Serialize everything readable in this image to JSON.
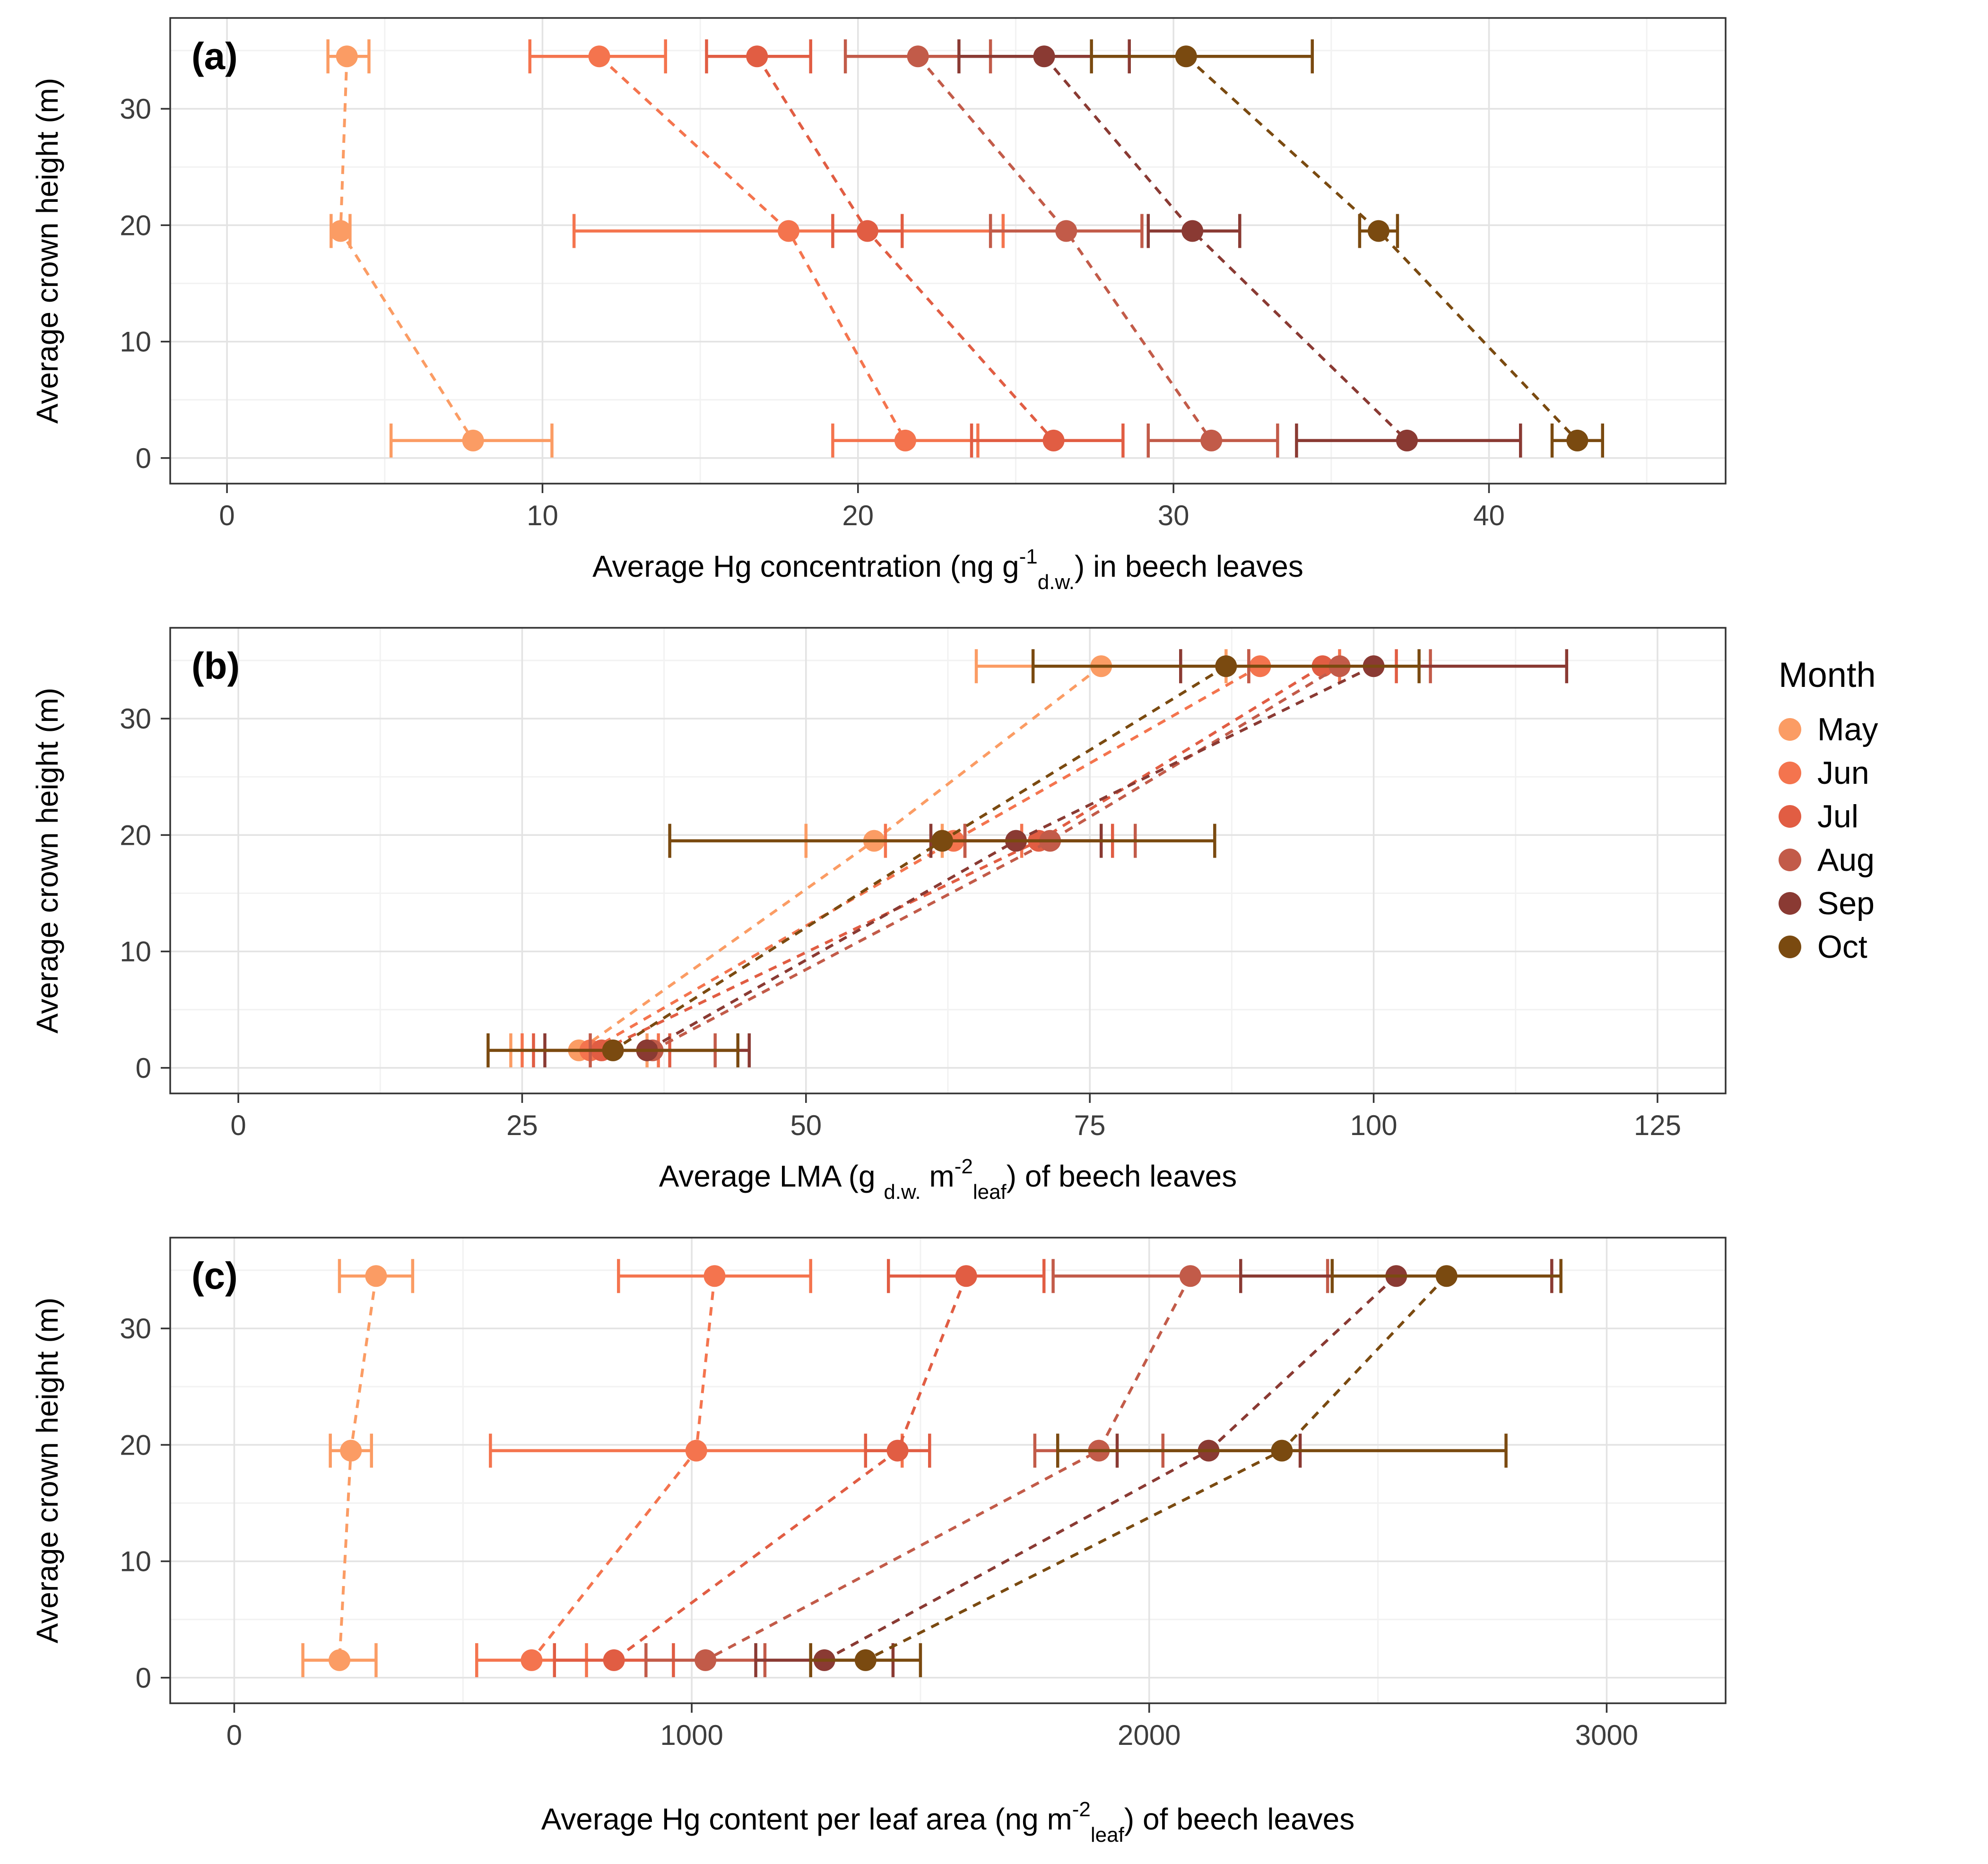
{
  "figure": {
    "y_axis_label": "Average crown height  (m)",
    "y_ticks": [
      0,
      10,
      20,
      30
    ],
    "ylim": [
      -2.2,
      37.8
    ],
    "background": "#ffffff",
    "grid_major_color": "#e3e3e3",
    "grid_minor_color": "#f2f2f2",
    "border_color": "#333333"
  },
  "legend": {
    "title": "Month",
    "items": [
      {
        "label": "May",
        "color": "#FB9C64"
      },
      {
        "label": "Jun",
        "color": "#F4744E"
      },
      {
        "label": "Jul",
        "color": "#E15D43"
      },
      {
        "label": "Aug",
        "color": "#C25B49"
      },
      {
        "label": "Sep",
        "color": "#8A3A33"
      },
      {
        "label": "Oct",
        "color": "#7A4A10"
      }
    ]
  },
  "chart_data": [
    {
      "type": "scatter",
      "label": "(a)",
      "xlabel_parts": [
        {
          "t": "Average Hg concentration (ng g",
          "s": "n"
        },
        {
          "t": "-1",
          "s": "sup"
        },
        {
          "t": "d.w.",
          "s": "sub"
        },
        {
          "t": ") in beech leaves",
          "s": "n"
        }
      ],
      "xlim": [
        -1.8,
        47.5
      ],
      "xticks": [
        0,
        10,
        20,
        30,
        40
      ],
      "series": [
        {
          "name": "May",
          "color": "#FB9C64",
          "points": [
            {
              "h": 34.5,
              "x": 3.8,
              "lo": 3.2,
              "hi": 4.5
            },
            {
              "h": 19.5,
              "x": 3.6,
              "lo": 3.3,
              "hi": 3.9
            },
            {
              "h": 1.5,
              "x": 7.8,
              "lo": 5.2,
              "hi": 10.3
            }
          ]
        },
        {
          "name": "Jun",
          "color": "#F4744E",
          "points": [
            {
              "h": 34.5,
              "x": 11.8,
              "lo": 9.6,
              "hi": 13.9
            },
            {
              "h": 19.5,
              "x": 17.8,
              "lo": 11.0,
              "hi": 24.6
            },
            {
              "h": 1.5,
              "x": 21.5,
              "lo": 19.2,
              "hi": 23.8
            }
          ]
        },
        {
          "name": "Jul",
          "color": "#E15D43",
          "points": [
            {
              "h": 34.5,
              "x": 16.8,
              "lo": 15.2,
              "hi": 18.5
            },
            {
              "h": 19.5,
              "x": 20.3,
              "lo": 19.2,
              "hi": 21.4
            },
            {
              "h": 1.5,
              "x": 26.2,
              "lo": 23.6,
              "hi": 28.4
            }
          ]
        },
        {
          "name": "Aug",
          "color": "#C25B49",
          "points": [
            {
              "h": 34.5,
              "x": 21.9,
              "lo": 19.6,
              "hi": 24.2
            },
            {
              "h": 19.5,
              "x": 26.6,
              "lo": 24.2,
              "hi": 29.0
            },
            {
              "h": 1.5,
              "x": 31.2,
              "lo": 29.2,
              "hi": 33.3
            }
          ]
        },
        {
          "name": "Sep",
          "color": "#8A3A33",
          "points": [
            {
              "h": 34.5,
              "x": 25.9,
              "lo": 23.2,
              "hi": 28.6
            },
            {
              "h": 19.5,
              "x": 30.6,
              "lo": 29.2,
              "hi": 32.1
            },
            {
              "h": 1.5,
              "x": 37.4,
              "lo": 33.9,
              "hi": 41.0
            }
          ]
        },
        {
          "name": "Oct",
          "color": "#7A4A10",
          "points": [
            {
              "h": 34.5,
              "x": 30.4,
              "lo": 27.4,
              "hi": 34.4
            },
            {
              "h": 19.5,
              "x": 36.5,
              "lo": 35.9,
              "hi": 37.1
            },
            {
              "h": 1.5,
              "x": 42.8,
              "lo": 42.0,
              "hi": 43.6
            }
          ]
        }
      ]
    },
    {
      "type": "scatter",
      "label": "(b)",
      "xlabel_parts": [
        {
          "t": "Average LMA (g ",
          "s": "n"
        },
        {
          "t": "d.w.",
          "s": "sub"
        },
        {
          "t": " m",
          "s": "n"
        },
        {
          "t": "-2",
          "s": "sup"
        },
        {
          "t": "leaf",
          "s": "sub"
        },
        {
          "t": ") of beech leaves",
          "s": "n"
        }
      ],
      "xlim": [
        -6,
        131
      ],
      "xticks": [
        0,
        25,
        50,
        75,
        100,
        125
      ],
      "series": [
        {
          "name": "May",
          "color": "#FB9C64",
          "points": [
            {
              "h": 34.5,
              "x": 76,
              "lo": 65,
              "hi": 87
            },
            {
              "h": 19.5,
              "x": 56,
              "lo": 50,
              "hi": 62
            },
            {
              "h": 1.5,
              "x": 30,
              "lo": 24,
              "hi": 36
            }
          ]
        },
        {
          "name": "Jun",
          "color": "#F4744E",
          "points": [
            {
              "h": 34.5,
              "x": 90,
              "lo": 83,
              "hi": 97
            },
            {
              "h": 19.5,
              "x": 63,
              "lo": 57,
              "hi": 69
            },
            {
              "h": 1.5,
              "x": 31,
              "lo": 25,
              "hi": 37
            }
          ]
        },
        {
          "name": "Jul",
          "color": "#E15D43",
          "points": [
            {
              "h": 34.5,
              "x": 95.5,
              "lo": 89,
              "hi": 102
            },
            {
              "h": 19.5,
              "x": 70.5,
              "lo": 64,
              "hi": 77
            },
            {
              "h": 1.5,
              "x": 32,
              "lo": 26,
              "hi": 38
            }
          ]
        },
        {
          "name": "Aug",
          "color": "#C25B49",
          "points": [
            {
              "h": 34.5,
              "x": 97,
              "lo": 89,
              "hi": 105
            },
            {
              "h": 19.5,
              "x": 71.5,
              "lo": 64,
              "hi": 79
            },
            {
              "h": 1.5,
              "x": 36.5,
              "lo": 31,
              "hi": 42
            }
          ]
        },
        {
          "name": "Sep",
          "color": "#8A3A33",
          "points": [
            {
              "h": 34.5,
              "x": 100,
              "lo": 83,
              "hi": 117
            },
            {
              "h": 19.5,
              "x": 68.5,
              "lo": 61,
              "hi": 76
            },
            {
              "h": 1.5,
              "x": 36,
              "lo": 27,
              "hi": 45
            }
          ]
        },
        {
          "name": "Oct",
          "color": "#7A4A10",
          "points": [
            {
              "h": 34.5,
              "x": 87,
              "lo": 70,
              "hi": 104
            },
            {
              "h": 19.5,
              "x": 62,
              "lo": 38,
              "hi": 86
            },
            {
              "h": 1.5,
              "x": 33,
              "lo": 22,
              "hi": 44
            }
          ]
        }
      ]
    },
    {
      "type": "scatter",
      "label": "(c)",
      "xlabel_parts": [
        {
          "t": "Average Hg content per leaf area (ng m",
          "s": "n"
        },
        {
          "t": "-2",
          "s": "sup"
        },
        {
          "t": "leaf",
          "s": "sub"
        },
        {
          "t": ") of beech leaves",
          "s": "n"
        }
      ],
      "xlim": [
        -140,
        3260
      ],
      "xticks": [
        0,
        1000,
        2000,
        3000
      ],
      "series": [
        {
          "name": "May",
          "color": "#FB9C64",
          "points": [
            {
              "h": 34.5,
              "x": 310,
              "lo": 230,
              "hi": 390
            },
            {
              "h": 19.5,
              "x": 255,
              "lo": 210,
              "hi": 300
            },
            {
              "h": 1.5,
              "x": 230,
              "lo": 150,
              "hi": 310
            }
          ]
        },
        {
          "name": "Jun",
          "color": "#F4744E",
          "points": [
            {
              "h": 34.5,
              "x": 1050,
              "lo": 840,
              "hi": 1260
            },
            {
              "h": 19.5,
              "x": 1010,
              "lo": 560,
              "hi": 1460
            },
            {
              "h": 1.5,
              "x": 650,
              "lo": 530,
              "hi": 770
            }
          ]
        },
        {
          "name": "Jul",
          "color": "#E15D43",
          "points": [
            {
              "h": 34.5,
              "x": 1600,
              "lo": 1430,
              "hi": 1770
            },
            {
              "h": 19.5,
              "x": 1450,
              "lo": 1380,
              "hi": 1520
            },
            {
              "h": 1.5,
              "x": 830,
              "lo": 700,
              "hi": 960
            }
          ]
        },
        {
          "name": "Aug",
          "color": "#C25B49",
          "points": [
            {
              "h": 34.5,
              "x": 2090,
              "lo": 1790,
              "hi": 2390
            },
            {
              "h": 19.5,
              "x": 1890,
              "lo": 1750,
              "hi": 2030
            },
            {
              "h": 1.5,
              "x": 1030,
              "lo": 900,
              "hi": 1160
            }
          ]
        },
        {
          "name": "Sep",
          "color": "#8A3A33",
          "points": [
            {
              "h": 34.5,
              "x": 2540,
              "lo": 2200,
              "hi": 2880
            },
            {
              "h": 19.5,
              "x": 2130,
              "lo": 1930,
              "hi": 2330
            },
            {
              "h": 1.5,
              "x": 1290,
              "lo": 1140,
              "hi": 1440
            }
          ]
        },
        {
          "name": "Oct",
          "color": "#7A4A10",
          "points": [
            {
              "h": 34.5,
              "x": 2650,
              "lo": 2400,
              "hi": 2900
            },
            {
              "h": 19.5,
              "x": 2290,
              "lo": 1800,
              "hi": 2780
            },
            {
              "h": 1.5,
              "x": 1380,
              "lo": 1260,
              "hi": 1500
            }
          ]
        }
      ]
    }
  ]
}
